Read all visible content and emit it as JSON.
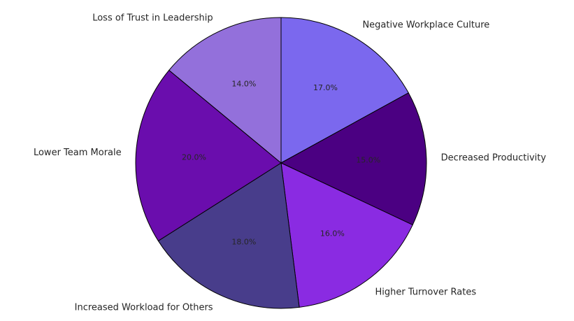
{
  "chart_data": {
    "type": "pie",
    "title": "",
    "start_angle_deg": 90,
    "direction": "clockwise",
    "slices": [
      {
        "label": "Negative Workplace Culture",
        "value": 17.0,
        "pct_label": "17.0%",
        "color": "#7B68EE"
      },
      {
        "label": "Decreased Productivity",
        "value": 15.0,
        "pct_label": "15.0%",
        "color": "#4B0082"
      },
      {
        "label": "Higher Turnover Rates",
        "value": 16.0,
        "pct_label": "16.0%",
        "color": "#8A2BE2"
      },
      {
        "label": "Increased Workload for Others",
        "value": 18.0,
        "pct_label": "18.0%",
        "color": "#483D8B"
      },
      {
        "label": "Lower Team Morale",
        "value": 20.0,
        "pct_label": "20.0%",
        "color": "#6A0DAD"
      },
      {
        "label": "Loss of Trust in Leadership",
        "value": 14.0,
        "pct_label": "14.0%",
        "color": "#9370DB"
      }
    ]
  }
}
